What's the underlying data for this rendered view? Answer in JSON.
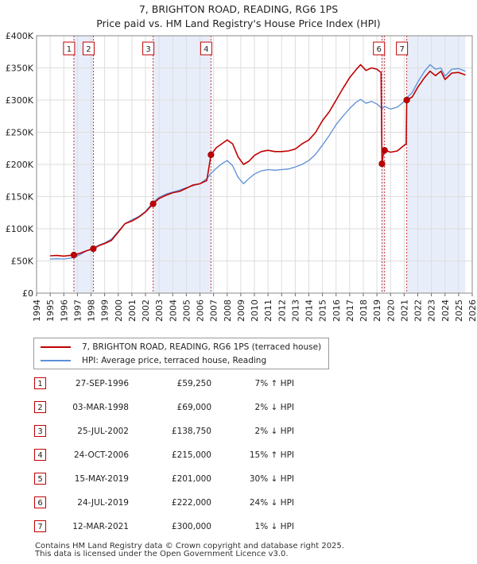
{
  "title_line1": "7, BRIGHTON ROAD, READING, RG6 1PS",
  "title_line2": "Price paid vs. HM Land Registry's House Price Index (HPI)",
  "colors": {
    "red": "#c00000",
    "blue": "#5b8fd6",
    "shade": "#e8eef9",
    "grid": "#dddddd"
  },
  "chart_data": {
    "type": "line",
    "xlim": [
      1994,
      2026
    ],
    "ylim": [
      0,
      400000
    ],
    "x_ticks": [
      "1994",
      "1995",
      "1996",
      "1997",
      "1998",
      "1999",
      "2000",
      "2001",
      "2002",
      "2003",
      "2004",
      "2005",
      "2006",
      "2007",
      "2008",
      "2009",
      "2010",
      "2011",
      "2012",
      "2013",
      "2014",
      "2015",
      "2016",
      "2017",
      "2018",
      "2019",
      "2020",
      "2021",
      "2022",
      "2023",
      "2024",
      "2025",
      "2026"
    ],
    "y_ticks": [
      {
        "value": 0,
        "label": "£0"
      },
      {
        "value": 50000,
        "label": "£50K"
      },
      {
        "value": 100000,
        "label": "£100K"
      },
      {
        "value": 150000,
        "label": "£150K"
      },
      {
        "value": 200000,
        "label": "£200K"
      },
      {
        "value": 250000,
        "label": "£250K"
      },
      {
        "value": 300000,
        "label": "£300K"
      },
      {
        "value": 350000,
        "label": "£350K"
      },
      {
        "value": 400000,
        "label": "£400K"
      }
    ],
    "shaded_ranges": [
      [
        1996.74,
        1998.17
      ],
      [
        2002.56,
        2006.81
      ],
      [
        2019.37,
        2019.56
      ],
      [
        2021.19,
        2025.5
      ]
    ],
    "series": [
      {
        "name": "7, BRIGHTON ROAD, READING, RG6 1PS (terraced house)",
        "color": "#c00000",
        "points": [
          [
            1995.0,
            58000
          ],
          [
            1995.5,
            58500
          ],
          [
            1996.0,
            57500
          ],
          [
            1996.5,
            58800
          ],
          [
            1996.74,
            59250
          ],
          [
            1997.2,
            62000
          ],
          [
            1997.7,
            66000
          ],
          [
            1998.17,
            69000
          ],
          [
            1998.6,
            74000
          ],
          [
            1999.0,
            77000
          ],
          [
            1999.5,
            82000
          ],
          [
            2000.0,
            95000
          ],
          [
            2000.5,
            108000
          ],
          [
            2001.0,
            112000
          ],
          [
            2001.5,
            118000
          ],
          [
            2002.0,
            126000
          ],
          [
            2002.56,
            138750
          ],
          [
            2003.0,
            147000
          ],
          [
            2003.5,
            152000
          ],
          [
            2004.0,
            156000
          ],
          [
            2004.5,
            158000
          ],
          [
            2005.0,
            163000
          ],
          [
            2005.5,
            168000
          ],
          [
            2006.0,
            170000
          ],
          [
            2006.5,
            175000
          ],
          [
            2006.81,
            215000
          ],
          [
            2007.2,
            226000
          ],
          [
            2007.6,
            232000
          ],
          [
            2008.0,
            238000
          ],
          [
            2008.4,
            232000
          ],
          [
            2008.8,
            212000
          ],
          [
            2009.2,
            200000
          ],
          [
            2009.6,
            205000
          ],
          [
            2010.0,
            214000
          ],
          [
            2010.5,
            220000
          ],
          [
            2011.0,
            222000
          ],
          [
            2011.5,
            220000
          ],
          [
            2012.0,
            220000
          ],
          [
            2012.5,
            221000
          ],
          [
            2013.0,
            224000
          ],
          [
            2013.5,
            232000
          ],
          [
            2014.0,
            238000
          ],
          [
            2014.5,
            250000
          ],
          [
            2015.0,
            268000
          ],
          [
            2015.5,
            282000
          ],
          [
            2016.0,
            300000
          ],
          [
            2016.5,
            318000
          ],
          [
            2017.0,
            335000
          ],
          [
            2017.5,
            348000
          ],
          [
            2017.8,
            355000
          ],
          [
            2018.2,
            346000
          ],
          [
            2018.6,
            350000
          ],
          [
            2019.0,
            348000
          ],
          [
            2019.3,
            343000
          ],
          [
            2019.37,
            201000
          ],
          [
            2019.45,
            214000
          ],
          [
            2019.56,
            222000
          ],
          [
            2020.0,
            219000
          ],
          [
            2020.5,
            221000
          ],
          [
            2020.9,
            228000
          ],
          [
            2021.15,
            232000
          ],
          [
            2021.19,
            300000
          ],
          [
            2021.6,
            305000
          ],
          [
            2022.0,
            320000
          ],
          [
            2022.5,
            335000
          ],
          [
            2022.9,
            345000
          ],
          [
            2023.3,
            338000
          ],
          [
            2023.7,
            345000
          ],
          [
            2024.0,
            332000
          ],
          [
            2024.5,
            342000
          ],
          [
            2025.0,
            343000
          ],
          [
            2025.5,
            339000
          ]
        ]
      },
      {
        "name": "HPI: Average price, terraced house, Reading",
        "color": "#5b8fd6",
        "points": [
          [
            1995.0,
            53000
          ],
          [
            1995.5,
            53500
          ],
          [
            1996.0,
            53000
          ],
          [
            1996.5,
            54500
          ],
          [
            1996.74,
            55000
          ],
          [
            1997.2,
            60000
          ],
          [
            1997.7,
            66000
          ],
          [
            1998.17,
            70000
          ],
          [
            1998.6,
            75000
          ],
          [
            1999.0,
            78000
          ],
          [
            1999.5,
            84000
          ],
          [
            2000.0,
            96000
          ],
          [
            2000.5,
            108000
          ],
          [
            2001.0,
            114000
          ],
          [
            2001.5,
            119000
          ],
          [
            2002.0,
            127000
          ],
          [
            2002.56,
            141000
          ],
          [
            2003.0,
            149000
          ],
          [
            2003.5,
            154000
          ],
          [
            2004.0,
            157000
          ],
          [
            2004.5,
            160000
          ],
          [
            2005.0,
            164000
          ],
          [
            2005.5,
            167000
          ],
          [
            2006.0,
            170000
          ],
          [
            2006.5,
            178000
          ],
          [
            2006.81,
            186000
          ],
          [
            2007.2,
            194000
          ],
          [
            2007.6,
            201000
          ],
          [
            2008.0,
            206000
          ],
          [
            2008.4,
            198000
          ],
          [
            2008.8,
            180000
          ],
          [
            2009.2,
            170000
          ],
          [
            2009.6,
            178000
          ],
          [
            2010.0,
            185000
          ],
          [
            2010.5,
            190000
          ],
          [
            2011.0,
            192000
          ],
          [
            2011.5,
            191000
          ],
          [
            2012.0,
            192000
          ],
          [
            2012.5,
            193000
          ],
          [
            2013.0,
            196000
          ],
          [
            2013.5,
            200000
          ],
          [
            2014.0,
            206000
          ],
          [
            2014.5,
            216000
          ],
          [
            2015.0,
            230000
          ],
          [
            2015.5,
            245000
          ],
          [
            2016.0,
            262000
          ],
          [
            2016.5,
            275000
          ],
          [
            2017.0,
            287000
          ],
          [
            2017.5,
            297000
          ],
          [
            2017.8,
            301000
          ],
          [
            2018.2,
            295000
          ],
          [
            2018.6,
            298000
          ],
          [
            2019.0,
            294000
          ],
          [
            2019.37,
            287000
          ],
          [
            2019.56,
            290000
          ],
          [
            2020.0,
            286000
          ],
          [
            2020.5,
            289000
          ],
          [
            2020.9,
            296000
          ],
          [
            2021.19,
            303000
          ],
          [
            2021.6,
            312000
          ],
          [
            2022.0,
            328000
          ],
          [
            2022.5,
            345000
          ],
          [
            2022.9,
            355000
          ],
          [
            2023.3,
            348000
          ],
          [
            2023.7,
            350000
          ],
          [
            2024.0,
            337000
          ],
          [
            2024.5,
            348000
          ],
          [
            2025.0,
            349000
          ],
          [
            2025.5,
            345000
          ]
        ]
      }
    ],
    "sales": [
      {
        "label": "1",
        "x": 1996.74,
        "price": 59250
      },
      {
        "label": "2",
        "x": 1998.17,
        "price": 69000
      },
      {
        "label": "3",
        "x": 2002.56,
        "price": 138750
      },
      {
        "label": "4",
        "x": 2006.81,
        "price": 215000
      },
      {
        "label": "5",
        "x": 2019.37,
        "price": 201000
      },
      {
        "label": "6",
        "x": 2019.56,
        "price": 222000
      },
      {
        "label": "7",
        "x": 2021.19,
        "price": 300000
      }
    ]
  },
  "legend": {
    "series1": "7, BRIGHTON ROAD, READING, RG6 1PS (terraced house)",
    "series2": "HPI: Average price, terraced house, Reading"
  },
  "transactions": [
    {
      "num": "1",
      "date": "27-SEP-1996",
      "price": "£59,250",
      "delta": "7% ↑ HPI"
    },
    {
      "num": "2",
      "date": "03-MAR-1998",
      "price": "£69,000",
      "delta": "2% ↓ HPI"
    },
    {
      "num": "3",
      "date": "25-JUL-2002",
      "price": "£138,750",
      "delta": "2% ↓ HPI"
    },
    {
      "num": "4",
      "date": "24-OCT-2006",
      "price": "£215,000",
      "delta": "15% ↑ HPI"
    },
    {
      "num": "5",
      "date": "15-MAY-2019",
      "price": "£201,000",
      "delta": "30% ↓ HPI"
    },
    {
      "num": "6",
      "date": "24-JUL-2019",
      "price": "£222,000",
      "delta": "24% ↓ HPI"
    },
    {
      "num": "7",
      "date": "12-MAR-2021",
      "price": "£300,000",
      "delta": "1% ↓ HPI"
    }
  ],
  "footer_line1": "Contains HM Land Registry data © Crown copyright and database right 2025.",
  "footer_line2": "This data is licensed under the Open Government Licence v3.0."
}
